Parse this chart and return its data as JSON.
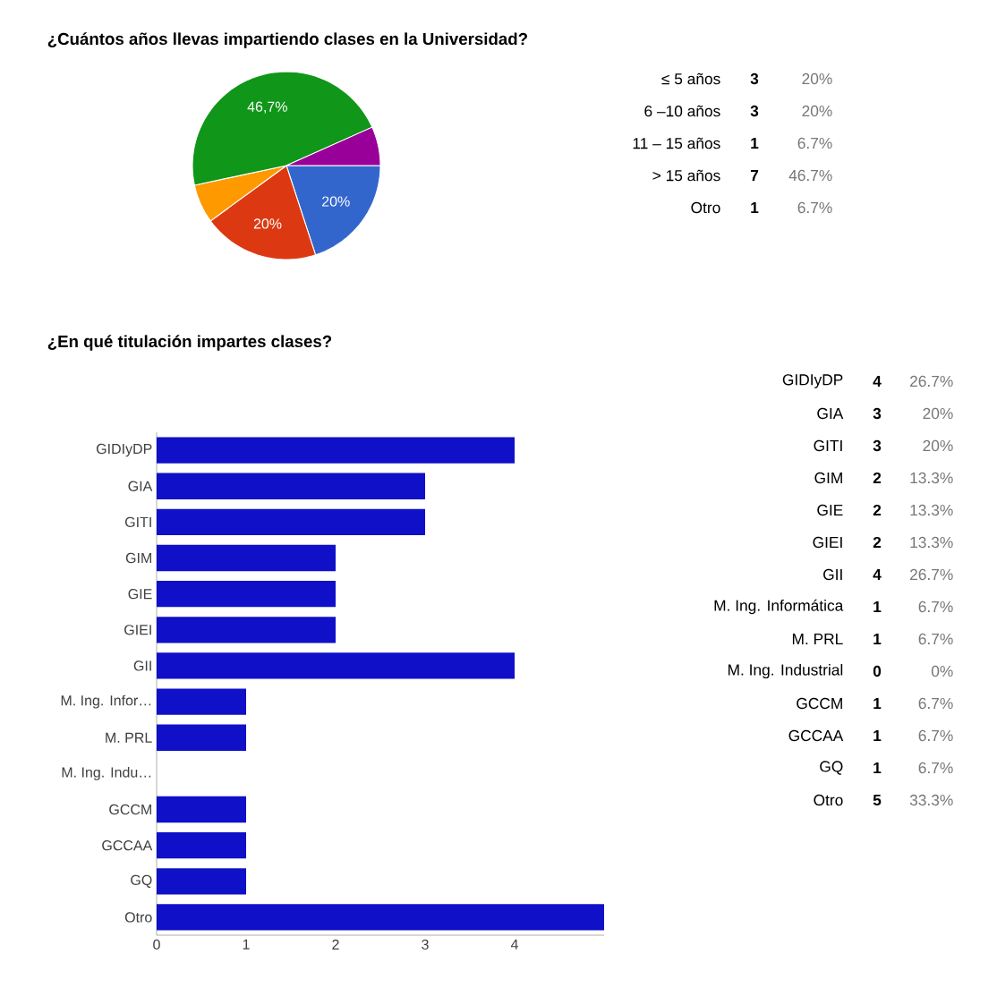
{
  "chart_data": [
    {
      "type": "pie",
      "title": "¿Cuántos años llevas impartiendo clases en la Universidad?",
      "categories": [
        null,
        null,
        null,
        null,
        null
      ],
      "values": [
        20,
        20,
        6.7,
        46.7,
        6.7
      ],
      "colors": [
        "#3366cc",
        "#dc3912",
        "#ff9900",
        "#109618",
        "#990099"
      ],
      "value_labels": [
        "20%",
        "20%",
        null,
        "46,7%",
        null
      ],
      "annotations": [
        "≤ 5 años",
        "6 –10 años",
        "11 – 15 años",
        "> 15 años",
        "Otro",
        "3",
        "3",
        "1",
        "7",
        "1",
        "20%",
        "20%",
        "6.7%",
        "46.7%",
        "6.7%"
      ]
    },
    {
      "type": "bar",
      "orientation": "horizontal",
      "title": "¿En qué titulación impartes clases?",
      "categories": [
        "GIDIyDP",
        "GIA",
        "GITI",
        "GIM",
        "GIE",
        "GIEI",
        "GII",
        "M. Ing. Infor…",
        "M. PRL",
        "M. Ing. Indu…",
        "GCCM",
        "GCCAA",
        "GQ",
        "Otro"
      ],
      "values": [
        4,
        3,
        3,
        2,
        2,
        2,
        4,
        1,
        1,
        0,
        1,
        1,
        1,
        5
      ],
      "color": "#1010c8",
      "xlim": [
        0,
        5
      ],
      "xticks": [
        0,
        1,
        2,
        3,
        4
      ],
      "grid": false,
      "annotations": [
        "GIDIyDP",
        "GIA",
        "GITI",
        "GIM",
        "GIE",
        "GIEI",
        "GII",
        "M. Ing. Informática",
        "M. PRL",
        "M. Ing. Industrial",
        "GCCM",
        "GCCAA",
        "GQ",
        "Otro",
        "4",
        "3",
        "3",
        "2",
        "2",
        "2",
        "4",
        "1",
        "1",
        "0",
        "1",
        "1",
        "1",
        "5",
        "26.7%",
        "20%",
        "20%",
        "13.3%",
        "13.3%",
        "13.3%",
        "26.7%",
        "6.7%",
        "6.7%",
        "0%",
        "6.7%",
        "6.7%",
        "6.7%",
        "33.3%"
      ]
    }
  ]
}
